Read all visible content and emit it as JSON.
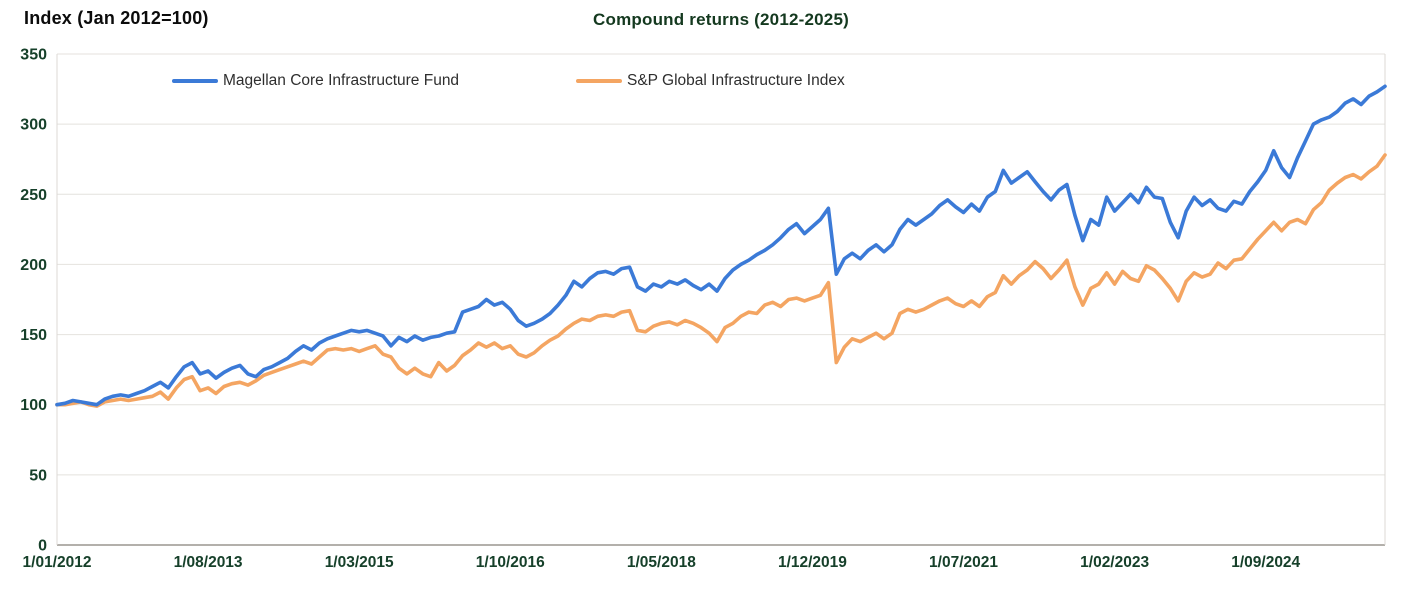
{
  "chart_data": {
    "type": "line",
    "title": "Compound returns (2012-2025)",
    "y_axis_title": "Index (Jan 2012=100)",
    "x_unit": "monthly, Jan 2012 - Dec 2025",
    "x_tick_labels": [
      "1/01/2012",
      "1/08/2013",
      "1/03/2015",
      "1/10/2016",
      "1/05/2018",
      "1/12/2019",
      "1/07/2021",
      "1/02/2023",
      "1/09/2024"
    ],
    "x_tick_indices": [
      0,
      19,
      38,
      57,
      76,
      95,
      114,
      133,
      152
    ],
    "y_ticks": [
      0,
      50,
      100,
      150,
      200,
      250,
      300,
      350
    ],
    "y_range": [
      0,
      350
    ],
    "grid": "horizontal",
    "legend_position": "top-inside",
    "colors": {
      "magellan": "#3b7ad7",
      "sp": "#f4a562",
      "tick_text": "#16402a",
      "title_text": "#14391f",
      "axis_title_text": "#0b0b0b",
      "legend_text": "#2e2e2e",
      "gridline": "#e4e2de",
      "axis_line": "#b3b0ab",
      "plot_border": "#dcd9d5"
    },
    "series": [
      {
        "name": "Magellan Core Infrastructure Fund",
        "color_key": "magellan",
        "values": [
          100,
          101,
          103,
          102,
          101,
          100,
          104,
          106,
          107,
          106,
          108,
          110,
          113,
          116,
          112,
          120,
          127,
          130,
          122,
          124,
          119,
          123,
          126,
          128,
          122,
          120,
          125,
          127,
          130,
          133,
          138,
          142,
          139,
          144,
          147,
          149,
          151,
          153,
          152,
          153,
          151,
          149,
          142,
          148,
          145,
          149,
          146,
          148,
          149,
          151,
          152,
          166,
          168,
          170,
          175,
          171,
          173,
          168,
          160,
          156,
          158,
          161,
          165,
          171,
          178,
          188,
          184,
          190,
          194,
          195,
          193,
          197,
          198,
          184,
          181,
          186,
          184,
          188,
          186,
          189,
          185,
          182,
          186,
          181,
          190,
          196,
          200,
          203,
          207,
          210,
          214,
          219,
          225,
          229,
          222,
          227,
          232,
          240,
          193,
          204,
          208,
          204,
          210,
          214,
          209,
          214,
          225,
          232,
          228,
          232,
          236,
          242,
          246,
          241,
          237,
          243,
          238,
          248,
          252,
          267,
          258,
          262,
          266,
          259,
          252,
          246,
          253,
          257,
          235,
          217,
          232,
          228,
          248,
          238,
          244,
          250,
          244,
          255,
          248,
          247,
          230,
          219,
          238,
          248,
          242,
          246,
          240,
          238,
          245,
          243,
          252,
          259,
          267,
          281,
          269,
          262,
          276,
          288,
          300,
          303,
          305,
          309,
          315,
          318,
          314,
          320,
          323,
          327
        ]
      },
      {
        "name": "S&P Global Infrastructure Index",
        "color_key": "sp",
        "values": [
          100,
          100,
          101,
          102,
          100,
          99,
          102,
          103,
          104,
          103,
          104,
          105,
          106,
          109,
          104,
          112,
          118,
          120,
          110,
          112,
          108,
          113,
          115,
          116,
          114,
          117,
          121,
          123,
          125,
          127,
          129,
          131,
          129,
          134,
          139,
          140,
          139,
          140,
          138,
          140,
          142,
          136,
          134,
          126,
          122,
          126,
          122,
          120,
          130,
          124,
          128,
          135,
          139,
          144,
          141,
          144,
          140,
          142,
          136,
          134,
          137,
          142,
          146,
          149,
          154,
          158,
          161,
          160,
          163,
          164,
          163,
          166,
          167,
          153,
          152,
          156,
          158,
          159,
          157,
          160,
          158,
          155,
          151,
          145,
          155,
          158,
          163,
          166,
          165,
          171,
          173,
          170,
          175,
          176,
          174,
          176,
          178,
          187,
          130,
          141,
          147,
          145,
          148,
          151,
          147,
          151,
          165,
          168,
          166,
          168,
          171,
          174,
          176,
          172,
          170,
          174,
          170,
          177,
          180,
          192,
          186,
          192,
          196,
          202,
          197,
          190,
          196,
          203,
          184,
          171,
          183,
          186,
          194,
          186,
          195,
          190,
          188,
          199,
          196,
          190,
          183,
          174,
          188,
          194,
          191,
          193,
          201,
          197,
          203,
          204,
          211,
          218,
          224,
          230,
          224,
          230,
          232,
          229,
          239,
          244,
          253,
          258,
          262,
          264,
          261,
          266,
          270,
          278
        ]
      }
    ]
  }
}
